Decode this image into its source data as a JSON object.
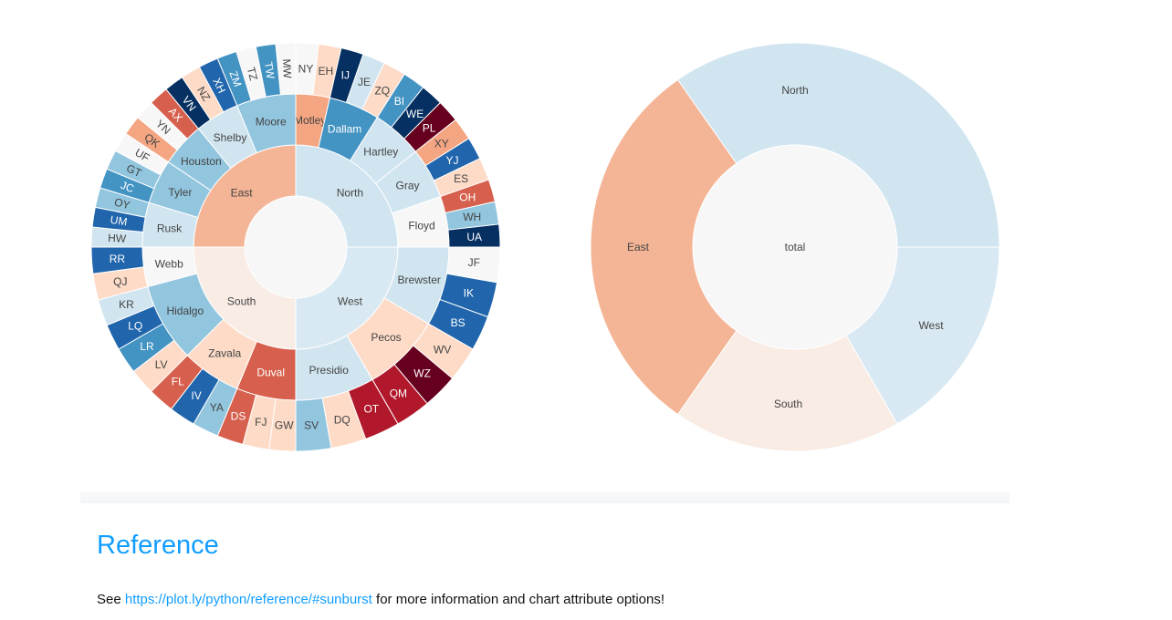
{
  "chart_data": [
    {
      "type": "sunburst",
      "root": "total",
      "regions": [
        {
          "name": "North",
          "states": [
            {
              "name": "Motley",
              "counties": [
                "NY",
                "EH"
              ]
            },
            {
              "name": "Dallam",
              "counties": [
                "IJ",
                "JE",
                "ZQ"
              ]
            },
            {
              "name": "Hartley",
              "counties": [
                "BI",
                "WE",
                "PL"
              ]
            },
            {
              "name": "Gray",
              "counties": [
                "XY",
                "YJ",
                "ES"
              ]
            },
            {
              "name": "Floyd",
              "counties": [
                "OH",
                "WH",
                "UA"
              ]
            }
          ]
        },
        {
          "name": "West",
          "states": [
            {
              "name": "Brewster",
              "counties": [
                "JF",
                "IK",
                "BS"
              ]
            },
            {
              "name": "Pecos",
              "counties": [
                "WV",
                "WZ",
                "QM"
              ]
            },
            {
              "name": "Presidio",
              "counties": [
                "OT",
                "DQ",
                "SV"
              ]
            }
          ]
        },
        {
          "name": "South",
          "states": [
            {
              "name": "Duval",
              "counties": [
                "GW",
                "FJ",
                "DS"
              ]
            },
            {
              "name": "Zavala",
              "counties": [
                "YA",
                "IV",
                "FL"
              ]
            },
            {
              "name": "Hidalgo",
              "counties": [
                "LV",
                "LR",
                "LQ",
                "KR"
              ]
            },
            {
              "name": "Webb",
              "counties": [
                "QJ",
                "RR"
              ]
            }
          ]
        },
        {
          "name": "East",
          "states": [
            {
              "name": "Rusk",
              "counties": [
                "HW",
                "UM",
                "OY"
              ]
            },
            {
              "name": "Tyler",
              "counties": [
                "JC",
                "GT",
                "UF"
              ]
            },
            {
              "name": "Houston",
              "counties": [
                "QK",
                "YN",
                "AX"
              ]
            },
            {
              "name": "Shelby",
              "counties": [
                "VN",
                "NZ",
                "XH"
              ]
            },
            {
              "name": "Moore",
              "counties": [
                "ZM",
                "TZ",
                "TW",
                "MW"
              ]
            }
          ]
        }
      ]
    },
    {
      "type": "sunburst",
      "root": "total",
      "regions": [
        "North",
        "West",
        "South",
        "East"
      ]
    }
  ],
  "reference": {
    "title": "Reference",
    "prefix": "See ",
    "link_text": "https://plot.ly/python/reference/#sunburst",
    "suffix": " for more information and chart attribute options!"
  }
}
